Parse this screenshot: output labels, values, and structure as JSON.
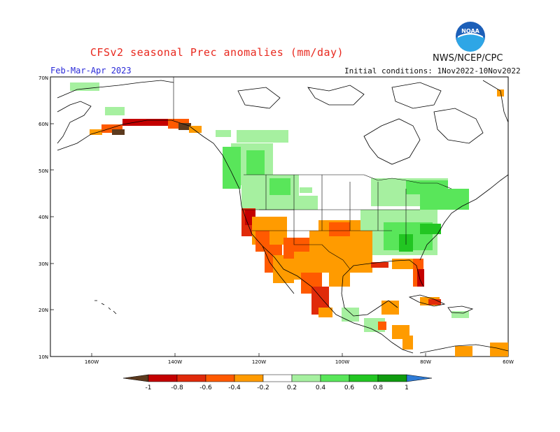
{
  "title": "CFSv2 seasonal Prec anomalies (mm/day)",
  "agency": "NWS/NCEP/CPC",
  "season": "Feb-Mar-Apr 2023",
  "initial_conditions": "Initial conditions: 1Nov2022-10Nov2022",
  "logo_text": "NOAA",
  "lat_labels": [
    "70N",
    "60N",
    "50N",
    "40N",
    "30N",
    "20N",
    "10N"
  ],
  "lon_labels": [
    "160W",
    "140W",
    "120W",
    "100W",
    "80W",
    "60W"
  ],
  "colorbar": {
    "labels": [
      "-1",
      "-0.8",
      "-0.6",
      "-0.4",
      "-0.2",
      "0.2",
      "0.4",
      "0.6",
      "0.8",
      "1"
    ],
    "colors": [
      "#5c3a1e",
      "#c40000",
      "#e02a0a",
      "#ff5a00",
      "#ff9b00",
      "#ffffff",
      "#a6f0a0",
      "#59e65a",
      "#22c622",
      "#0f9b0f",
      "#2e7bd6"
    ]
  }
}
